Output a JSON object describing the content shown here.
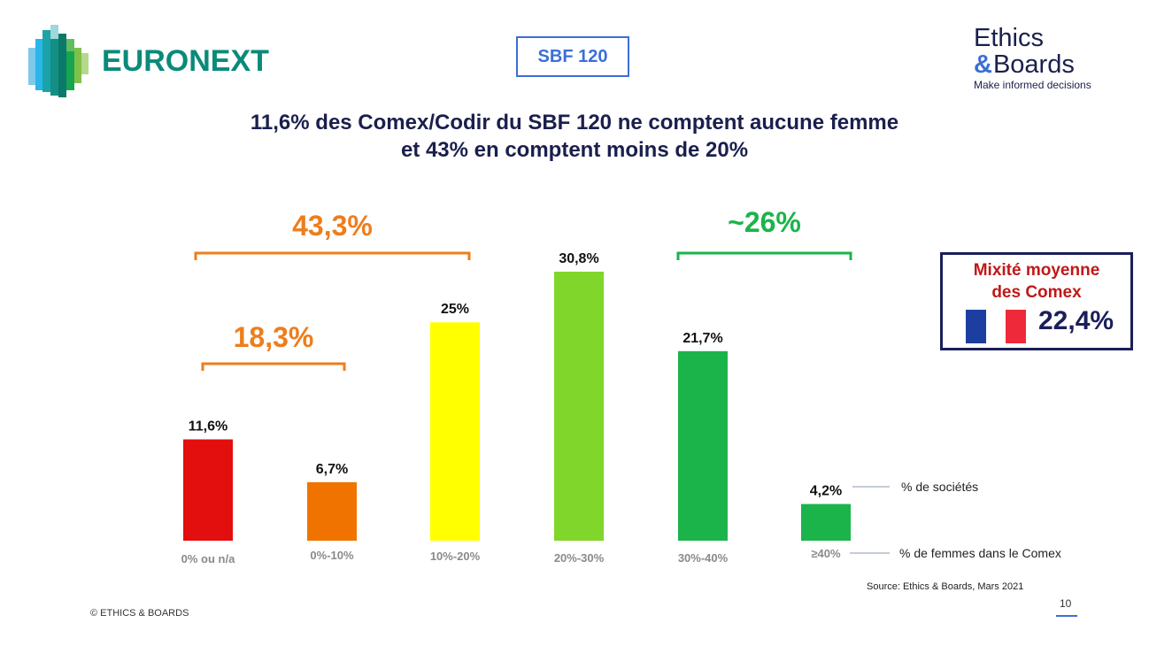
{
  "header": {
    "euronext_logo_text": "EURONEXT",
    "index_badge": "SBF 120",
    "brand": {
      "line1": "Ethics",
      "amp": "&",
      "line2": "Boards",
      "tagline": "Make informed decisions"
    }
  },
  "title": {
    "line1": "11,6% des Comex/Codir du SBF 120 ne comptent aucune femme",
    "line2": "et 43% en comptent moins de 20%"
  },
  "chart_data": {
    "type": "bar",
    "title": "11,6% des Comex/Codir du SBF 120 ne comptent aucune femme et 43% en comptent moins de 20%",
    "xlabel": "% de femmes dans le Comex",
    "ylabel": "% de sociétés",
    "categories": [
      "0% ou n/a",
      "0%-10%",
      "10%-20%",
      "20%-30%",
      "30%-40%",
      "≥40%"
    ],
    "values": [
      11.6,
      6.7,
      25,
      30.8,
      21.7,
      4.2
    ],
    "value_labels": [
      "11,6%",
      "6,7%",
      "25%",
      "30,8%",
      "21,7%",
      "4,2%"
    ],
    "colors": [
      "#e30e0e",
      "#f07300",
      "#ffff00",
      "#80d62a",
      "#1ab44a",
      "#1ab44a"
    ],
    "ylim": [
      0,
      35
    ],
    "grid": false,
    "brackets": [
      {
        "label": "43,3%",
        "from": 0,
        "to": 2,
        "color": "#ee7d1c"
      },
      {
        "label": "18,3%",
        "from": 0,
        "to": 1,
        "color": "#ee7d1c"
      },
      {
        "label": "~26%",
        "from": 4,
        "to": 5,
        "color": "#1ab44a"
      }
    ],
    "legend": {
      "value_note": "% de sociétés",
      "category_note": "% de femmes dans le Comex",
      "placement": "right"
    }
  },
  "mixite": {
    "title_line1": "Mixité moyenne",
    "title_line2": "des Comex",
    "value": "22,4%",
    "flag_colors": [
      "#1b3ea0",
      "#ffffff",
      "#ee2a3a"
    ]
  },
  "footer": {
    "source": "Source: Ethics & Boards, Mars 2021",
    "page_number": "10",
    "copyright": "© ETHICS & BOARDS"
  }
}
